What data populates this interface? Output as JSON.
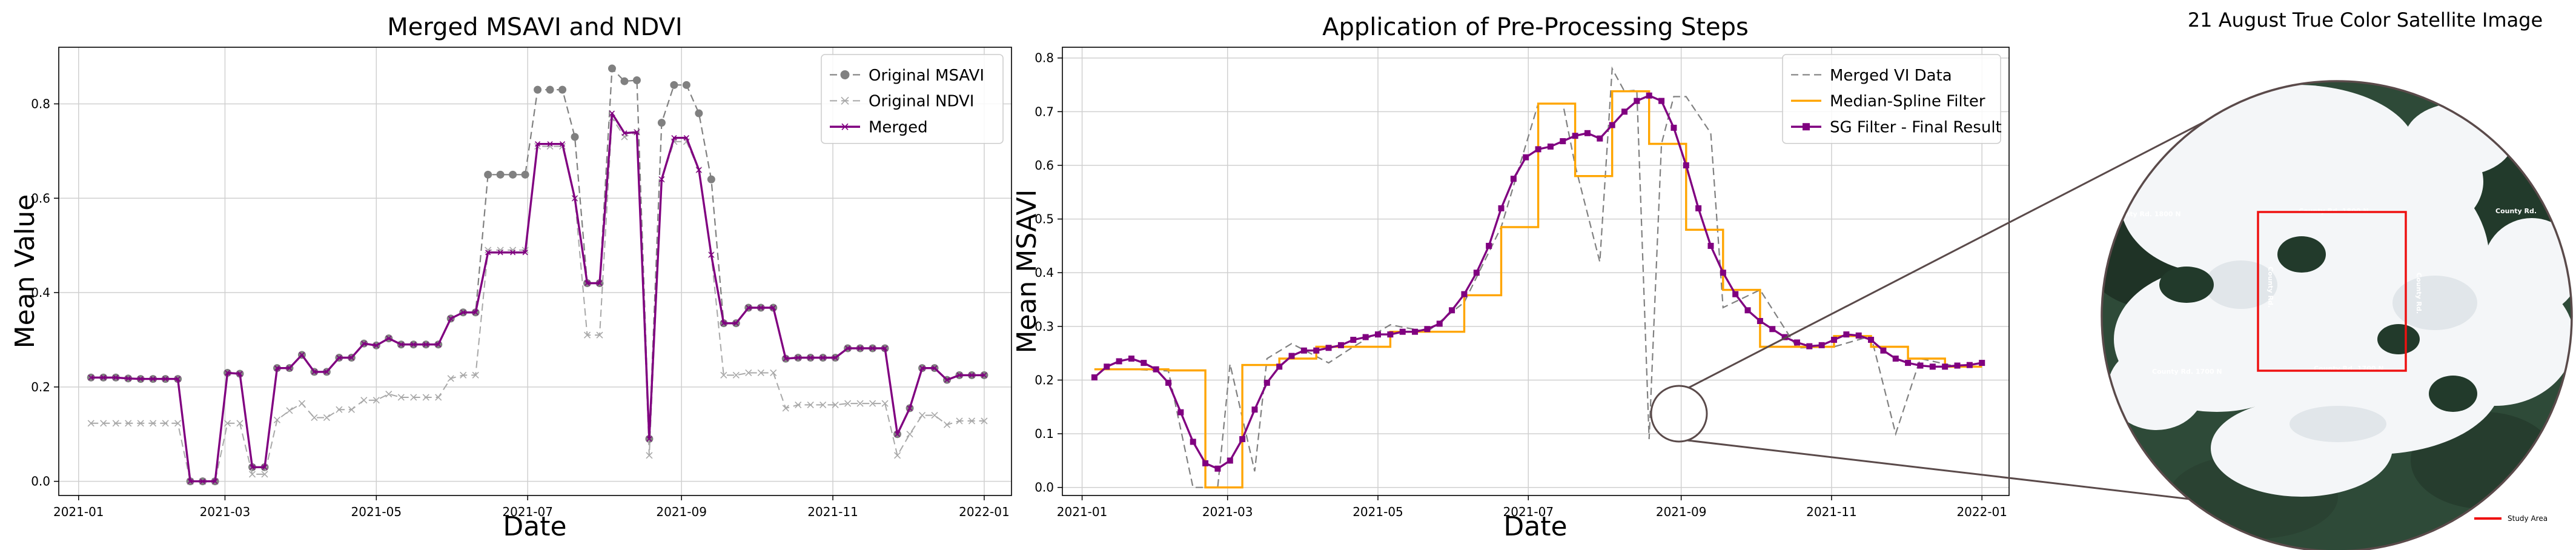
{
  "chart_data": [
    {
      "type": "line",
      "title": "Merged MSAVI and NDVI",
      "xlabel": "Date",
      "ylabel": "Mean Value",
      "ylim": [
        -0.03,
        0.92
      ],
      "xlim": [
        "2020-12-24",
        "2022-01-12"
      ],
      "x_ticks": [
        "2021-01",
        "2021-03",
        "2021-05",
        "2021-07",
        "2021-09",
        "2021-11",
        "2022-01"
      ],
      "y_ticks": [
        "0.0",
        "0.2",
        "0.4",
        "0.6",
        "0.8"
      ],
      "grid": true,
      "legend_position": "top-right",
      "colors": {
        "msavi": "#808080",
        "ndvi": "#a8a8a8",
        "merged": "#800080"
      },
      "x": [
        "2021-01-06",
        "2021-01-11",
        "2021-01-16",
        "2021-01-21",
        "2021-01-26",
        "2021-01-31",
        "2021-02-05",
        "2021-02-10",
        "2021-02-15",
        "2021-02-20",
        "2021-02-25",
        "2021-03-02",
        "2021-03-07",
        "2021-03-12",
        "2021-03-17",
        "2021-03-22",
        "2021-03-27",
        "2021-04-01",
        "2021-04-06",
        "2021-04-11",
        "2021-04-16",
        "2021-04-21",
        "2021-04-26",
        "2021-05-01",
        "2021-05-06",
        "2021-05-11",
        "2021-05-16",
        "2021-05-21",
        "2021-05-26",
        "2021-05-31",
        "2021-06-05",
        "2021-06-10",
        "2021-06-15",
        "2021-06-20",
        "2021-06-25",
        "2021-06-30",
        "2021-07-05",
        "2021-07-10",
        "2021-07-15",
        "2021-07-20",
        "2021-07-25",
        "2021-07-30",
        "2021-08-04",
        "2021-08-09",
        "2021-08-14",
        "2021-08-19",
        "2021-08-24",
        "2021-08-29",
        "2021-09-03",
        "2021-09-08",
        "2021-09-13",
        "2021-09-18",
        "2021-09-23",
        "2021-09-28",
        "2021-10-03",
        "2021-10-08",
        "2021-10-13",
        "2021-10-18",
        "2021-10-23",
        "2021-10-28",
        "2021-11-02",
        "2021-11-07",
        "2021-11-12",
        "2021-11-17",
        "2021-11-22",
        "2021-11-27",
        "2021-12-02",
        "2021-12-07",
        "2021-12-12",
        "2021-12-17",
        "2021-12-22",
        "2021-12-27",
        "2022-01-01"
      ],
      "series": [
        {
          "name": "Original MSAVI",
          "style": "dashed-circle",
          "values": [
            0.22,
            0.22,
            0.22,
            0.218,
            0.217,
            0.217,
            0.217,
            0.217,
            0.0,
            0.0,
            0.0,
            0.23,
            0.228,
            0.03,
            0.03,
            0.24,
            0.24,
            0.268,
            0.232,
            0.232,
            0.262,
            0.262,
            0.292,
            0.288,
            0.303,
            0.29,
            0.29,
            0.29,
            0.29,
            0.345,
            0.358,
            0.358,
            0.65,
            0.65,
            0.65,
            0.65,
            0.83,
            0.83,
            0.83,
            0.73,
            0.42,
            0.42,
            0.875,
            0.848,
            0.85,
            0.09,
            0.76,
            0.84,
            0.84,
            0.78,
            0.64,
            0.335,
            0.335,
            0.368,
            0.368,
            0.368,
            0.26,
            0.262,
            0.262,
            0.262,
            0.262,
            0.282,
            0.282,
            0.282,
            0.282,
            0.1,
            0.155,
            0.24,
            0.24,
            0.215,
            0.225,
            0.225,
            0.225
          ]
        },
        {
          "name": "Original NDVI",
          "style": "dashed-x",
          "values": [
            0.123,
            0.123,
            0.123,
            0.123,
            0.123,
            0.123,
            0.123,
            0.123,
            0.0,
            0.0,
            0.0,
            0.123,
            0.123,
            0.015,
            0.015,
            0.13,
            0.15,
            0.165,
            0.135,
            0.135,
            0.152,
            0.152,
            0.172,
            0.172,
            0.185,
            0.178,
            0.178,
            0.178,
            0.178,
            0.218,
            0.225,
            0.225,
            0.49,
            0.49,
            0.49,
            0.49,
            0.71,
            0.71,
            0.71,
            0.6,
            0.31,
            0.31,
            0.77,
            0.73,
            0.74,
            0.055,
            0.64,
            0.72,
            0.72,
            0.66,
            0.48,
            0.225,
            0.225,
            0.23,
            0.23,
            0.23,
            0.155,
            0.162,
            0.162,
            0.162,
            0.162,
            0.165,
            0.165,
            0.165,
            0.165,
            0.055,
            0.1,
            0.14,
            0.14,
            0.12,
            0.128,
            0.128,
            0.128
          ]
        },
        {
          "name": "Merged",
          "style": "solid-x",
          "values": [
            0.22,
            0.22,
            0.22,
            0.218,
            0.217,
            0.217,
            0.217,
            0.217,
            0.0,
            0.0,
            0.0,
            0.23,
            0.228,
            0.03,
            0.03,
            0.24,
            0.24,
            0.268,
            0.232,
            0.232,
            0.262,
            0.262,
            0.292,
            0.288,
            0.303,
            0.29,
            0.29,
            0.29,
            0.29,
            0.345,
            0.358,
            0.358,
            0.485,
            0.485,
            0.485,
            0.485,
            0.715,
            0.715,
            0.715,
            0.6,
            0.42,
            0.42,
            0.78,
            0.738,
            0.74,
            0.09,
            0.64,
            0.728,
            0.728,
            0.66,
            0.48,
            0.335,
            0.335,
            0.368,
            0.368,
            0.368,
            0.26,
            0.262,
            0.262,
            0.262,
            0.262,
            0.282,
            0.282,
            0.282,
            0.282,
            0.1,
            0.155,
            0.24,
            0.24,
            0.215,
            0.225,
            0.225,
            0.225
          ]
        }
      ]
    },
    {
      "type": "line",
      "title": "Application of Pre-Processing Steps",
      "xlabel": "Date",
      "ylabel": "Mean MSAVI",
      "ylim": [
        -0.015,
        0.82
      ],
      "xlim": [
        "2020-12-24",
        "2022-01-12"
      ],
      "x_ticks": [
        "2021-01",
        "2021-03",
        "2021-05",
        "2021-07",
        "2021-09",
        "2021-11",
        "2022-01"
      ],
      "y_ticks": [
        "0.0",
        "0.1",
        "0.2",
        "0.3",
        "0.4",
        "0.5",
        "0.6",
        "0.7",
        "0.8"
      ],
      "grid": true,
      "legend_position": "top-right",
      "colors": {
        "merged": "#808080",
        "median": "#ffa500",
        "sg": "#800080"
      },
      "step_dates": [
        "2021-01-06",
        "2021-01-21",
        "2021-02-05",
        "2021-02-20",
        "2021-03-07",
        "2021-03-22",
        "2021-04-06",
        "2021-04-21",
        "2021-05-06",
        "2021-05-21",
        "2021-06-05",
        "2021-06-20",
        "2021-07-05",
        "2021-07-20",
        "2021-08-04",
        "2021-08-19",
        "2021-09-03",
        "2021-09-18",
        "2021-10-03",
        "2021-10-18",
        "2021-11-02",
        "2021-11-17",
        "2021-12-02",
        "2021-12-17",
        "2022-01-01"
      ],
      "series": [
        {
          "name": "Merged VI Data",
          "style": "dashed",
          "x": [
            "2021-01-06",
            "2021-01-21",
            "2021-02-05",
            "2021-02-15",
            "2021-02-25",
            "2021-03-02",
            "2021-03-12",
            "2021-03-17",
            "2021-03-27",
            "2021-04-11",
            "2021-04-21",
            "2021-05-06",
            "2021-05-21",
            "2021-06-05",
            "2021-06-20",
            "2021-07-05",
            "2021-07-15",
            "2021-07-20",
            "2021-07-30",
            "2021-08-04",
            "2021-08-09",
            "2021-08-14",
            "2021-08-19",
            "2021-08-24",
            "2021-08-29",
            "2021-09-03",
            "2021-09-13",
            "2021-09-18",
            "2021-10-03",
            "2021-10-18",
            "2021-11-02",
            "2021-11-17",
            "2021-11-27",
            "2021-12-07",
            "2021-12-22",
            "2022-01-01"
          ],
          "values": [
            0.22,
            0.22,
            0.217,
            0.0,
            0.0,
            0.23,
            0.03,
            0.24,
            0.268,
            0.232,
            0.262,
            0.303,
            0.29,
            0.345,
            0.485,
            0.715,
            0.715,
            0.6,
            0.42,
            0.78,
            0.738,
            0.74,
            0.09,
            0.64,
            0.728,
            0.728,
            0.66,
            0.335,
            0.368,
            0.26,
            0.262,
            0.282,
            0.1,
            0.24,
            0.225,
            0.225
          ]
        },
        {
          "name": "Median-Spline Filter",
          "style": "solid-step",
          "values": [
            0.22,
            0.22,
            0.218,
            0.0,
            0.228,
            0.24,
            0.262,
            0.262,
            0.29,
            0.29,
            0.358,
            0.485,
            0.715,
            0.58,
            0.738,
            0.64,
            0.48,
            0.368,
            0.262,
            0.262,
            0.282,
            0.262,
            0.24,
            0.225,
            0.225
          ]
        },
        {
          "name": "SG Filter - Final Result",
          "style": "solid-square",
          "x_start": "2021-01-06",
          "x_step_days": 5,
          "values": [
            0.205,
            0.225,
            0.235,
            0.24,
            0.232,
            0.22,
            0.195,
            0.14,
            0.085,
            0.045,
            0.035,
            0.05,
            0.09,
            0.145,
            0.195,
            0.225,
            0.245,
            0.255,
            0.255,
            0.26,
            0.265,
            0.275,
            0.28,
            0.285,
            0.285,
            0.29,
            0.29,
            0.295,
            0.305,
            0.33,
            0.36,
            0.4,
            0.45,
            0.52,
            0.575,
            0.615,
            0.63,
            0.635,
            0.645,
            0.655,
            0.66,
            0.65,
            0.675,
            0.7,
            0.72,
            0.73,
            0.72,
            0.67,
            0.6,
            0.52,
            0.45,
            0.4,
            0.36,
            0.33,
            0.31,
            0.295,
            0.28,
            0.27,
            0.263,
            0.265,
            0.275,
            0.285,
            0.283,
            0.275,
            0.255,
            0.24,
            0.232,
            0.227,
            0.225,
            0.225,
            0.227,
            0.228,
            0.232
          ]
        }
      ]
    }
  ],
  "satellite_panel": {
    "title": "21 August True Color Satellite Image",
    "road_labels": [
      "County Rd. 1800 N",
      "County Rd. 1800 N",
      "County Rd. 1700 N",
      "County Rd. 1700 N",
      "County Rd.",
      "County Rd.",
      "County Rd.",
      "County Rd."
    ],
    "legend_label": "Study Area",
    "study_area_color": "#ee1111"
  }
}
